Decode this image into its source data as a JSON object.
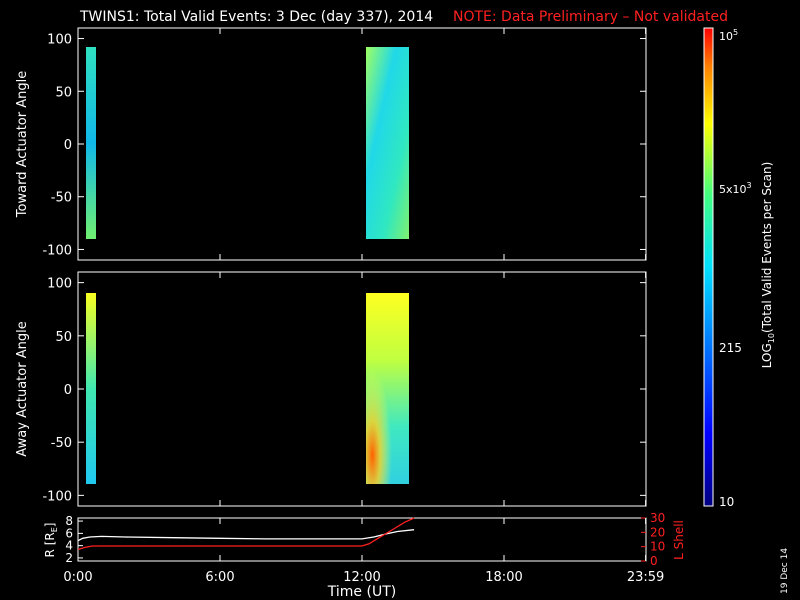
{
  "title": {
    "main": "TWINS1: Total Valid Events:  3 Dec (day 337), 2014",
    "note": "NOTE: Data Preliminary – Not validated"
  },
  "chart_data": [
    {
      "type": "heatmap",
      "ylabel": "Toward Actuator Angle",
      "ylim": [
        -110,
        110
      ],
      "yticks": [
        "100",
        "50",
        "0",
        "-50",
        "-100"
      ],
      "xlim_hours": [
        0,
        24
      ],
      "blocks": [
        {
          "x_start": "0:00",
          "x_end": "0:15",
          "y_range": [
            -90,
            90
          ],
          "level": "cyan-green"
        },
        {
          "x_start": "12:15",
          "x_end": "14:15",
          "y_range": [
            -90,
            90
          ],
          "level": "green-cyan"
        }
      ]
    },
    {
      "type": "heatmap",
      "ylabel": "Away Actuator Angle",
      "ylim": [
        -110,
        110
      ],
      "yticks": [
        "100",
        "50",
        "0",
        "-50",
        "-100"
      ],
      "xlim_hours": [
        0,
        24
      ],
      "blocks": [
        {
          "x_start": "0:00",
          "x_end": "0:15",
          "y_range": [
            -90,
            90
          ],
          "level": "yellow-cyan"
        },
        {
          "x_start": "12:15",
          "x_end": "14:15",
          "y_range": [
            -90,
            90
          ],
          "level": "yellow-green"
        }
      ]
    },
    {
      "type": "line",
      "ylabel": "R [R",
      "ylabel_sub": "E",
      "ylabel_close": "]",
      "ylabel_right": "L Shell",
      "yticks_left": [
        "8",
        "6",
        "4",
        "2"
      ],
      "yticks_right": [
        "30",
        "20",
        "10",
        "0"
      ],
      "ylim_left": [
        1.5,
        8.5
      ],
      "ylim_right": [
        0,
        30
      ],
      "series": [
        {
          "axis": "left",
          "color": "#ffffff",
          "x": [
            0.0,
            0.2,
            0.5,
            1.0,
            2.0,
            4.0,
            6.0,
            8.0,
            10.0,
            12.0,
            12.5,
            13.0,
            13.5,
            14.2
          ],
          "y": [
            4.8,
            5.2,
            5.4,
            5.5,
            5.4,
            5.3,
            5.2,
            5.1,
            5.1,
            5.1,
            5.4,
            5.9,
            6.3,
            6.6
          ]
        },
        {
          "axis": "right",
          "color": "#ff2020",
          "x": [
            0.0,
            0.3,
            0.6,
            1.0,
            4.0,
            8.0,
            12.0,
            12.3,
            12.8,
            13.3,
            13.8,
            14.2
          ],
          "y": [
            8.0,
            9.5,
            10.5,
            10.5,
            10.5,
            10.5,
            10.5,
            12.0,
            17.0,
            22.0,
            27.0,
            31.0
          ]
        }
      ]
    }
  ],
  "xaxis": {
    "ticks": [
      "0:00",
      "6:00",
      "12:00",
      "18:00",
      "23:59"
    ],
    "label": "Time (UT)"
  },
  "colorbar": {
    "label_main": "LOG",
    "label_sub": "10",
    "label_rest": "(Total Valid Events per Scan)",
    "top": "10",
    "top_exp": "5",
    "mid": "5x10",
    "mid_exp": "3",
    "low": "215",
    "bottom": "10"
  },
  "date_stamp": "19 Dec 14"
}
